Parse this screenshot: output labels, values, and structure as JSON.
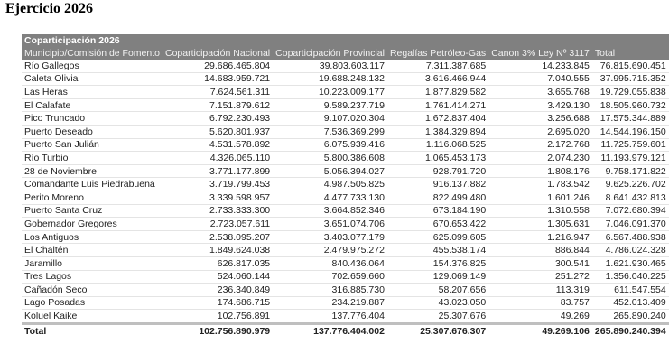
{
  "title": "Ejercicio 2026",
  "table": {
    "caption": "Coparticipación 2026",
    "headers": [
      "Municipio/Comisión de Fomento",
      "Coparticipación Nacional",
      "Coparticipación Provincial",
      "Regalías Petróleo-Gas",
      "Canon 3% Ley Nº 3117",
      "Total"
    ],
    "rows": [
      [
        "Río Gallegos",
        "29.686.465.804",
        "39.803.603.117",
        "7.311.387.685",
        "14.233.845",
        "76.815.690.451"
      ],
      [
        "Caleta Olivia",
        "14.683.959.721",
        "19.688.248.132",
        "3.616.466.944",
        "7.040.555",
        "37.995.715.352"
      ],
      [
        "Las Heras",
        "7.624.561.311",
        "10.223.009.177",
        "1.877.829.582",
        "3.655.768",
        "19.729.055.838"
      ],
      [
        "El Calafate",
        "7.151.879.612",
        "9.589.237.719",
        "1.761.414.271",
        "3.429.130",
        "18.505.960.732"
      ],
      [
        "Pico Truncado",
        "6.792.230.493",
        "9.107.020.304",
        "1.672.837.404",
        "3.256.688",
        "17.575.344.889"
      ],
      [
        "Puerto Deseado",
        "5.620.801.937",
        "7.536.369.299",
        "1.384.329.894",
        "2.695.020",
        "14.544.196.150"
      ],
      [
        "Puerto San Julián",
        "4.531.578.892",
        "6.075.939.416",
        "1.116.068.525",
        "2.172.768",
        "11.725.759.601"
      ],
      [
        "Río Turbio",
        "4.326.065.110",
        "5.800.386.608",
        "1.065.453.173",
        "2.074.230",
        "11.193.979.121"
      ],
      [
        "28 de Noviembre",
        "3.771.177.899",
        "5.056.394.027",
        "928.791.720",
        "1.808.176",
        "9.758.171.822"
      ],
      [
        "Comandante Luis Piedrabuena",
        "3.719.799.453",
        "4.987.505.825",
        "916.137.882",
        "1.783.542",
        "9.625.226.702"
      ],
      [
        "Perito Moreno",
        "3.339.598.957",
        "4.477.733.130",
        "822.499.480",
        "1.601.246",
        "8.641.432.813"
      ],
      [
        "Puerto Santa Cruz",
        "2.733.333.300",
        "3.664.852.346",
        "673.184.190",
        "1.310.558",
        "7.072.680.394"
      ],
      [
        "Gobernador Gregores",
        "2.723.057.611",
        "3.651.074.706",
        "670.653.422",
        "1.305.631",
        "7.046.091.370"
      ],
      [
        "Los Antiguos",
        "2.538.095.207",
        "3.403.077.179",
        "625.099.605",
        "1.216.947",
        "6.567.488.938"
      ],
      [
        "El Chaltén",
        "1.849.624.038",
        "2.479.975.272",
        "455.538.174",
        "886.844",
        "4.786.024.328"
      ],
      [
        "Jaramillo",
        "626.817.035",
        "840.436.064",
        "154.376.825",
        "300.541",
        "1.621.930.465"
      ],
      [
        "Tres Lagos",
        "524.060.144",
        "702.659.660",
        "129.069.149",
        "251.272",
        "1.356.040.225"
      ],
      [
        "Cañadón Seco",
        "236.340.849",
        "316.885.730",
        "58.207.656",
        "113.319",
        "611.547.554"
      ],
      [
        "Lago Posadas",
        "174.686.715",
        "234.219.887",
        "43.023.050",
        "83.757",
        "452.013.409"
      ],
      [
        "Koluel Kaike",
        "102.756.891",
        "137.776.404",
        "25.307.676",
        "49.269",
        "265.890.240"
      ]
    ],
    "total": [
      "Total",
      "102.756.890.979",
      "137.776.404.002",
      "25.307.676.307",
      "49.269.106",
      "265.890.240.394"
    ]
  }
}
